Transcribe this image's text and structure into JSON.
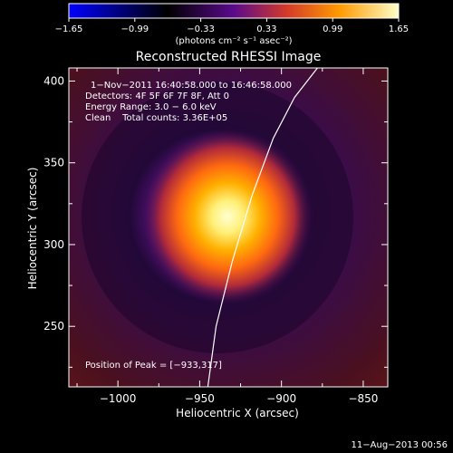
{
  "chart_data": {
    "type": "heatmap",
    "title": "Reconstructed RHESSI Image",
    "xlabel": "Heliocentric X (arcsec)",
    "ylabel": "Heliocentric Y (arcsec)",
    "xlim": [
      -1030,
      -835
    ],
    "ylim": [
      213,
      408
    ],
    "x_ticks": [
      -1000,
      -950,
      -900,
      -850
    ],
    "y_ticks": [
      250,
      300,
      350,
      400
    ],
    "x_tick_labels": [
      "−1000",
      "−950",
      "−900",
      "−850"
    ],
    "y_tick_labels": [
      "250",
      "300",
      "350",
      "400"
    ],
    "colorbar": {
      "range": [
        -1.65,
        1.65
      ],
      "ticks": [
        -1.65,
        -0.99,
        -0.33,
        0.33,
        0.99,
        1.65
      ],
      "tick_labels": [
        "−1.65",
        "−0.99",
        "−0.33",
        "0.33",
        "0.99",
        "1.65"
      ],
      "units_label": "(photons cm⁻² s⁻¹ asec⁻²)"
    },
    "annotations": [
      "1−Nov−2011 16:40:58.000 to 16:46:58.000",
      "Detectors: 4F 5F 6F 7F 8F, Att 0",
      "Energy Range: 3.0 − 6.0 keV",
      "Clean    Total counts: 3.36E+05"
    ],
    "peak_label": "Position of Peak = [−933,317]",
    "peak": {
      "x": -933,
      "y": 317,
      "value": 1.65
    },
    "limb_curve": {
      "x": [
        -945,
        -940,
        -930,
        -918,
        -905,
        -892,
        -878
      ],
      "y": [
        213,
        250,
        290,
        330,
        365,
        390,
        408
      ]
    },
    "grid": false,
    "legend": "none",
    "colormap": [
      "#0000ff",
      "#000000",
      "#5a0a8c",
      "#d43a2a",
      "#ff9a00",
      "#ffffc8"
    ]
  },
  "footer": {
    "timestamp": "11−Aug−2013 00:56"
  }
}
